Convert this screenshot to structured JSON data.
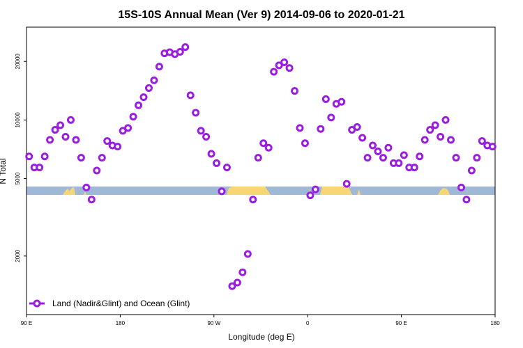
{
  "chart_data": {
    "type": "scatter",
    "title": "15S-10S Annual Mean (Ver 9)   2014-09-06 to 2020-01-21",
    "xlabel": "Longitude (deg E)",
    "ylabel": "N Total",
    "x_ticks": [
      {
        "value": 90,
        "label": "90 E"
      },
      {
        "value": 180,
        "label": "180"
      },
      {
        "value": 270,
        "label": "90 W"
      },
      {
        "value": 360,
        "label": "0"
      },
      {
        "value": 450,
        "label": "90 E"
      },
      {
        "value": 540,
        "label": "180"
      }
    ],
    "y_ticks": [
      2000,
      5000,
      10000,
      20000
    ],
    "xlim": [
      90,
      540
    ],
    "ylim": [
      1000,
      30000
    ],
    "y_scale": "log",
    "legend_position": "bottom-left",
    "colors": {
      "series": "#9a1ee0",
      "land_band": "#9fb8d6",
      "land_fill": "#f7d774"
    },
    "series": [
      {
        "name": "Land (Nadir&Glint) and Ocean (Glint)",
        "x": [
          92.5,
          97.5,
          102.5,
          107.5,
          112.5,
          117.5,
          122.5,
          127.5,
          132.5,
          137.5,
          142.5,
          147.5,
          152.5,
          157.5,
          162.5,
          167.5,
          172.5,
          177.5,
          182.5,
          187.5,
          192.5,
          197.5,
          202.5,
          207.5,
          212.5,
          217.5,
          222.5,
          227.5,
          232.5,
          237.5,
          242.5,
          247.5,
          252.5,
          257.5,
          262.5,
          267.5,
          272.5,
          277.5,
          282.5,
          287.5,
          292.5,
          297.5,
          302.5,
          307.5,
          312.5,
          317.5,
          322.5,
          327.5,
          332.5,
          337.5,
          342.5,
          347.5,
          352.5,
          357.5,
          362.5,
          367.5,
          372.5,
          377.5,
          382.5,
          387.5,
          392.5,
          397.5,
          402.5,
          407.5,
          412.5,
          417.5,
          422.5,
          427.5,
          432.5,
          437.5,
          442.5,
          447.5,
          452.5,
          457.5,
          462.5,
          467.5,
          472.5,
          477.5,
          482.5,
          487.5,
          492.5,
          497.5,
          502.5,
          507.5,
          512.5,
          517.5,
          522.5,
          527.5,
          532.5,
          537.5
        ],
        "y": [
          6500,
          5700,
          5700,
          6500,
          7900,
          8900,
          9400,
          8200,
          10000,
          7900,
          6400,
          4500,
          3900,
          5500,
          6400,
          7800,
          7400,
          7300,
          8800,
          9100,
          10400,
          11900,
          13100,
          14600,
          16000,
          18800,
          22000,
          22300,
          21800,
          22400,
          23700,
          13400,
          10900,
          8800,
          8200,
          6700,
          6000,
          4300,
          5700,
          1400,
          1460,
          1650,
          2050,
          3900,
          6400,
          7600,
          7200,
          17700,
          19100,
          19800,
          18500,
          14100,
          9100,
          7600,
          4100,
          4400,
          9000,
          12800,
          10300,
          12100,
          12400,
          4700,
          8900,
          9200,
          8100,
          6400,
          7400,
          6900,
          6400,
          7200,
          6000,
          6000,
          6600,
          5700,
          5700,
          6500,
          7900,
          8900,
          9400,
          8200,
          10000,
          7900,
          6400,
          4500,
          3900,
          5500,
          6400,
          7800,
          7400,
          7300
        ]
      }
    ]
  }
}
